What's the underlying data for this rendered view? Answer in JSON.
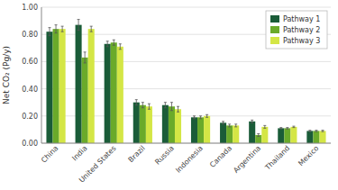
{
  "chart_data": {
    "type": "bar",
    "categories": [
      "China",
      "India",
      "United States",
      "Brazil",
      "Russia",
      "Indonesia",
      "Canada",
      "Argentina",
      "Thailand",
      "Mexico"
    ],
    "series": [
      {
        "name": "Pathway 1",
        "color": "#1a5c38",
        "values": [
          0.82,
          0.87,
          0.73,
          0.3,
          0.28,
          0.19,
          0.15,
          0.16,
          0.11,
          0.09
        ],
        "errors": [
          0.03,
          0.04,
          0.02,
          0.02,
          0.02,
          0.01,
          0.01,
          0.01,
          0.005,
          0.005
        ]
      },
      {
        "name": "Pathway 2",
        "color": "#6aaa2a",
        "values": [
          0.84,
          0.63,
          0.74,
          0.28,
          0.27,
          0.19,
          0.13,
          0.06,
          0.11,
          0.09
        ],
        "errors": [
          0.03,
          0.04,
          0.02,
          0.02,
          0.03,
          0.01,
          0.01,
          0.01,
          0.005,
          0.005
        ]
      },
      {
        "name": "Pathway 3",
        "color": "#d4e645",
        "values": [
          0.84,
          0.84,
          0.71,
          0.27,
          0.25,
          0.2,
          0.13,
          0.12,
          0.12,
          0.09
        ],
        "errors": [
          0.02,
          0.02,
          0.02,
          0.02,
          0.02,
          0.01,
          0.01,
          0.01,
          0.005,
          0.005
        ]
      }
    ],
    "ylabel": "Net CO₂ (Pg/y)",
    "ylim": [
      0.0,
      1.0
    ],
    "yticks": [
      {
        "value": 0.0,
        "label": "0.00"
      },
      {
        "value": 0.2,
        "label": "0.20"
      },
      {
        "value": 0.4,
        "label": "0.40"
      },
      {
        "value": 0.6,
        "label": "0.60"
      },
      {
        "value": 0.8,
        "label": "0.80"
      },
      {
        "value": 1.0,
        "label": "1.00"
      }
    ],
    "grid": true,
    "legend": "upper right"
  }
}
